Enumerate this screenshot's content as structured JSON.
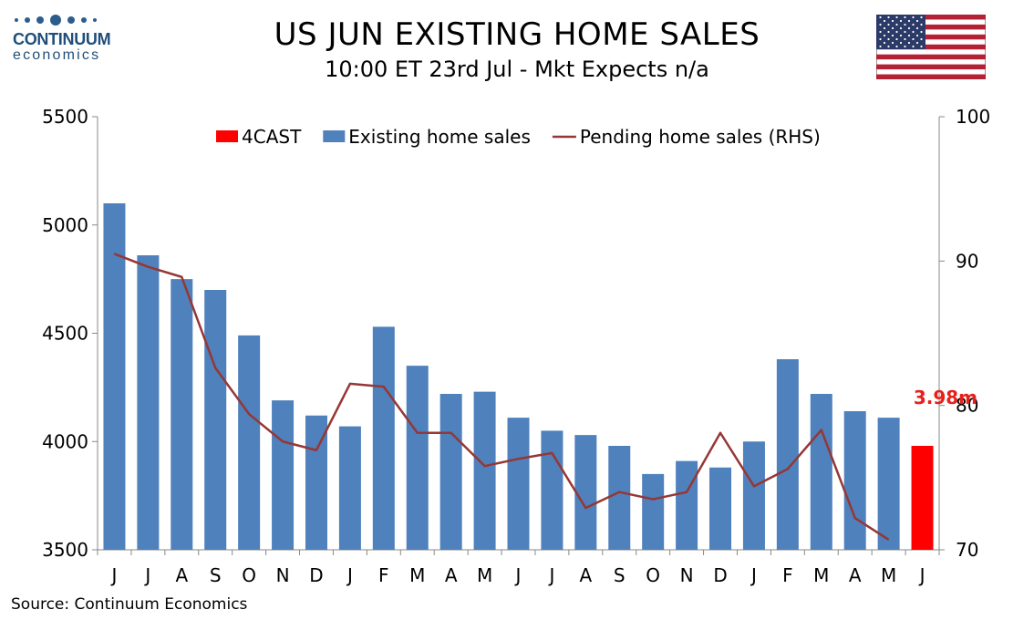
{
  "logo": {
    "name": "CONTINUUM",
    "tagline": "economics"
  },
  "header": {
    "title": "US JUN EXISTING HOME SALES",
    "subtitle": "10:00 ET 23rd Jul - Mkt Expects n/a"
  },
  "source": "Source: Continuum Economics",
  "colors": {
    "bars": "#4f81bd",
    "forecast": "#ff0000",
    "line": "#953735",
    "forecast_label": "#e8201a"
  },
  "chart_data": {
    "type": "bar",
    "categories": [
      "J",
      "J",
      "A",
      "S",
      "O",
      "N",
      "D",
      "J",
      "F",
      "M",
      "A",
      "M",
      "J",
      "J",
      "A",
      "S",
      "O",
      "N",
      "D",
      "J",
      "F",
      "M",
      "A",
      "M",
      "J"
    ],
    "ylim": [
      3500,
      5500
    ],
    "y_ticks": [
      3500,
      4000,
      4500,
      5000,
      5500
    ],
    "y2lim": [
      70,
      100
    ],
    "y2_ticks": [
      70,
      80,
      90,
      100
    ],
    "grid": false,
    "legend_position": "top",
    "series": [
      {
        "name": "4CAST",
        "kind": "bar",
        "values": [
          null,
          null,
          null,
          null,
          null,
          null,
          null,
          null,
          null,
          null,
          null,
          null,
          null,
          null,
          null,
          null,
          null,
          null,
          null,
          null,
          null,
          null,
          null,
          null,
          3980
        ]
      },
      {
        "name": "Existing home sales",
        "kind": "bar",
        "values": [
          5100,
          4860,
          4750,
          4700,
          4490,
          4190,
          4120,
          4070,
          4530,
          4350,
          4220,
          4230,
          4110,
          4050,
          4030,
          3980,
          3850,
          3910,
          3880,
          4000,
          4380,
          4220,
          4140,
          4110,
          null
        ]
      },
      {
        "name": "Pending home sales (RHS)",
        "kind": "line",
        "axis": "right",
        "values": [
          90.5,
          89.6,
          88.9,
          82.6,
          79.4,
          77.5,
          76.9,
          81.5,
          81.3,
          78.1,
          78.1,
          75.8,
          76.3,
          76.7,
          72.9,
          74.0,
          73.5,
          74.0,
          78.1,
          74.4,
          75.6,
          78.3,
          72.2,
          70.7,
          null
        ]
      }
    ],
    "annotations": [
      {
        "text": "3.98m",
        "category_index": 24
      }
    ]
  }
}
